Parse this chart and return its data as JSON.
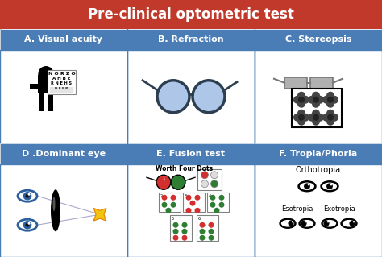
{
  "title": "Pre-clinical optometric test",
  "title_bg": "#c0392b",
  "title_color": "white",
  "header_bg": "#4a7cb5",
  "header_color": "white",
  "border_color": "#4a7cb5",
  "outer_border": "#333333",
  "col_headers": [
    "A. Visual acuity",
    "B. Refraction",
    "C. Stereopsis"
  ],
  "row_headers": [
    "D .Dominant eye",
    "E. Fusion test",
    "F. Tropia/Phoria"
  ],
  "labels": {
    "orthotropia": "Orthotropia",
    "esotropia": "Esotropia",
    "exotropia": "Exotropia",
    "worth": "Worth Four Dots"
  },
  "eye_blue": "#2c5f9e",
  "star_color": "#f1c40f",
  "dot_red": "#d32f2f",
  "dot_green": "#2e7d32",
  "dot_white": "#ffffff",
  "glasses_blue": "#aec6e8",
  "glasses_dark": "#2c3e50"
}
